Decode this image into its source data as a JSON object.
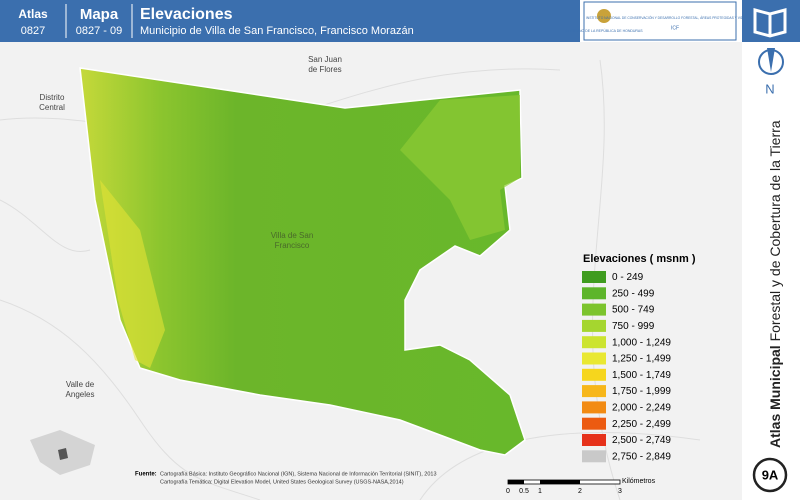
{
  "header": {
    "atlas_label": "Atlas",
    "atlas_number": "0827",
    "mapa_label": "Mapa",
    "mapa_number": "0827 - 09",
    "title": "Elevaciones",
    "subtitle": "Municipio de Villa de San Francisco, Francisco Morazán"
  },
  "logos": {
    "gobierno": "GOBIERNO DE LA REPÚBLICA DE HONDURAS",
    "icf": "INSTITUTO NACIONAL DE CONSERVACIÓN Y DESARROLLO FORESTAL, ÁREAS PROTEGIDAS Y VIDA SILVESTRE",
    "icf_short": "ICF"
  },
  "places": [
    [
      "San Juan",
      "de Flores"
    ],
    [
      "Distrito",
      "Central"
    ],
    [
      "Villa de San",
      "Francisco"
    ],
    [
      "Valle de",
      "Angeles"
    ]
  ],
  "legend": {
    "title": "Elevaciones ( msnm )",
    "items": [
      {
        "label": "0 - 249",
        "color": "#3f9c1f"
      },
      {
        "label": "250 - 499",
        "color": "#5db52a"
      },
      {
        "label": "500 - 749",
        "color": "#7cc42d"
      },
      {
        "label": "750 - 999",
        "color": "#a5d62f"
      },
      {
        "label": "1,000 - 1,249",
        "color": "#cce430"
      },
      {
        "label": "1,250 - 1,499",
        "color": "#e9e832"
      },
      {
        "label": "1,500 - 1,749",
        "color": "#f6d61d"
      },
      {
        "label": "1,750 - 1,999",
        "color": "#f7b71a"
      },
      {
        "label": "2,000 - 2,249",
        "color": "#f28b13"
      },
      {
        "label": "2,250 - 2,499",
        "color": "#ec5b11"
      },
      {
        "label": "2,500 - 2,749",
        "color": "#e6321b"
      },
      {
        "label": "2,750 - 2,849",
        "color": "#c9c9c9"
      }
    ]
  },
  "scale": {
    "ticks": [
      "0",
      "0.5",
      "1",
      "2",
      "3"
    ],
    "unit": "Kilómetros"
  },
  "source": {
    "label": "Fuente:",
    "lines": [
      "Cartografía Básica: Instituto Geográfico Nacional (IGN), Sistema Nacional de Información Territorial (SINIT), 2013",
      "Cartografía Temática: Digital Elevation Model, United States Geological Survey (USGS-NASA,2014)"
    ]
  },
  "side": {
    "bold": "Atlas Municipal",
    "rest": "Forestal y de Cobertura de la Tierra",
    "north": "N",
    "badge": "9A"
  }
}
